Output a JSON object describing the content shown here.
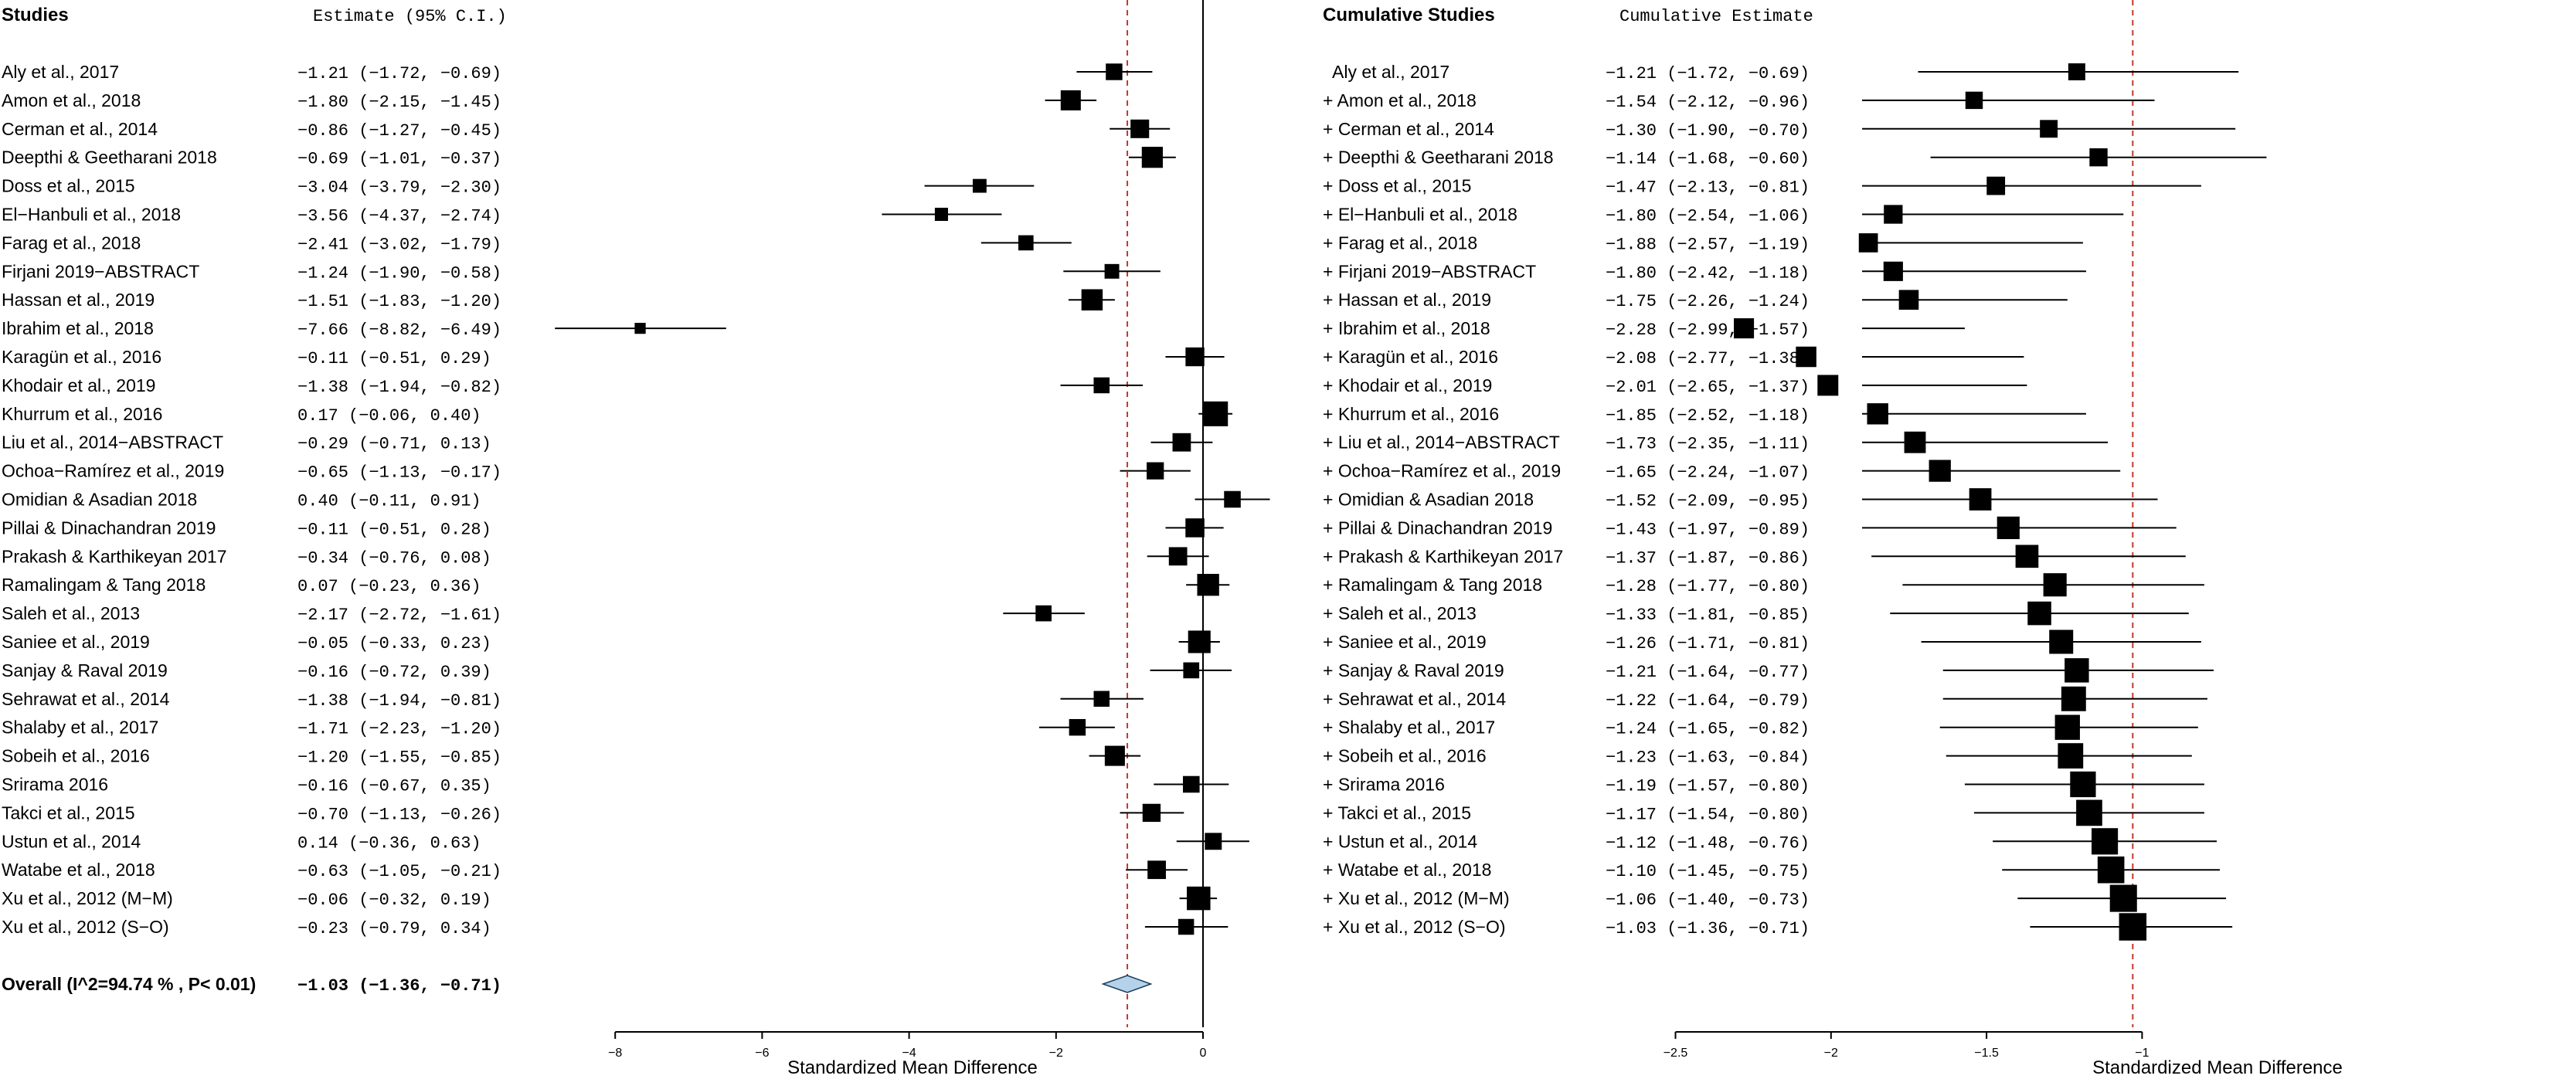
{
  "left_panel": {
    "header_studies": "Studies",
    "header_estimate": "Estimate (95% C.I.)",
    "overall_label": "Overall (I^2=94.74 % , P< 0.01)",
    "overall_estimate": "-1.03 (-1.36, -0.71)"
  },
  "right_panel": {
    "header_studies": "Cumulative Studies",
    "header_estimate": "Cumulative Estimate"
  },
  "chart_data": [
    {
      "type": "forest",
      "xlabel": "Standardized Mean Difference",
      "xlim": [
        -8.5,
        1.5
      ],
      "xticks": [
        -8,
        -6,
        -4,
        -2,
        0
      ],
      "xtick_labels": [
        "−8",
        "−6",
        "−4",
        "−2",
        "0"
      ],
      "reference_line": 0,
      "summary_line": -1.03,
      "colors": {
        "marker": "#000000",
        "summary_line": "#c0392b",
        "diamond": "#b4d3ea"
      },
      "studies": [
        {
          "name": "Aly et al., 2017",
          "est": -1.21,
          "lo": -1.72,
          "hi": -0.69,
          "text": "-1.21 (-1.72, -0.69)"
        },
        {
          "name": "Amon et al., 2018",
          "est": -1.8,
          "lo": -2.15,
          "hi": -1.45,
          "text": "-1.80 (-2.15, -1.45)"
        },
        {
          "name": "Cerman et al., 2014",
          "est": -0.86,
          "lo": -1.27,
          "hi": -0.45,
          "text": "-0.86 (-1.27, -0.45)"
        },
        {
          "name": "Deepthi & Geetharani 2018",
          "est": -0.69,
          "lo": -1.01,
          "hi": -0.37,
          "text": "-0.69 (-1.01, -0.37)"
        },
        {
          "name": "Doss et al., 2015",
          "est": -3.04,
          "lo": -3.79,
          "hi": -2.3,
          "text": "-3.04 (-3.79, -2.30)"
        },
        {
          "name": "El−Hanbuli et al., 2018",
          "est": -3.56,
          "lo": -4.37,
          "hi": -2.74,
          "text": "-3.56 (-4.37, -2.74)"
        },
        {
          "name": "Farag et al., 2018",
          "est": -2.41,
          "lo": -3.02,
          "hi": -1.79,
          "text": "-2.41 (-3.02, -1.79)"
        },
        {
          "name": "Firjani 2019−ABSTRACT",
          "est": -1.24,
          "lo": -1.9,
          "hi": -0.58,
          "text": "-1.24 (-1.90, -0.58)"
        },
        {
          "name": "Hassan et al., 2019",
          "est": -1.51,
          "lo": -1.83,
          "hi": -1.2,
          "text": "-1.51 (-1.83, -1.20)"
        },
        {
          "name": "Ibrahim et al., 2018",
          "est": -7.66,
          "lo": -8.82,
          "hi": -6.49,
          "text": "-7.66 (-8.82, -6.49)"
        },
        {
          "name": "Karagün et al., 2016",
          "est": -0.11,
          "lo": -0.51,
          "hi": 0.29,
          "text": "-0.11 (-0.51,  0.29)"
        },
        {
          "name": "Khodair et al., 2019",
          "est": -1.38,
          "lo": -1.94,
          "hi": -0.82,
          "text": "-1.38 (-1.94, -0.82)"
        },
        {
          "name": "Khurrum et al., 2016",
          "est": 0.17,
          "lo": -0.06,
          "hi": 0.4,
          "text": " 0.17 (-0.06,  0.40)"
        },
        {
          "name": "Liu et al., 2014−ABSTRACT",
          "est": -0.29,
          "lo": -0.71,
          "hi": 0.13,
          "text": "-0.29 (-0.71,  0.13)"
        },
        {
          "name": "Ochoa−Ramírez et al., 2019",
          "est": -0.65,
          "lo": -1.13,
          "hi": -0.17,
          "text": "-0.65 (-1.13, -0.17)"
        },
        {
          "name": "Omidian & Asadian 2018",
          "est": 0.4,
          "lo": -0.11,
          "hi": 0.91,
          "text": " 0.40 (-0.11,  0.91)"
        },
        {
          "name": "Pillai & Dinachandran 2019",
          "est": -0.11,
          "lo": -0.51,
          "hi": 0.28,
          "text": "-0.11 (-0.51,  0.28)"
        },
        {
          "name": "Prakash & Karthikeyan 2017",
          "est": -0.34,
          "lo": -0.76,
          "hi": 0.08,
          "text": "-0.34 (-0.76,  0.08)"
        },
        {
          "name": "Ramalingam & Tang 2018",
          "est": 0.07,
          "lo": -0.23,
          "hi": 0.36,
          "text": " 0.07 (-0.23,  0.36)"
        },
        {
          "name": "Saleh et al., 2013",
          "est": -2.17,
          "lo": -2.72,
          "hi": -1.61,
          "text": "-2.17 (-2.72, -1.61)"
        },
        {
          "name": "Saniee et al., 2019",
          "est": -0.05,
          "lo": -0.33,
          "hi": 0.23,
          "text": "-0.05 (-0.33,  0.23)"
        },
        {
          "name": "Sanjay & Raval 2019",
          "est": -0.16,
          "lo": -0.72,
          "hi": 0.39,
          "text": "-0.16 (-0.72,  0.39)"
        },
        {
          "name": "Sehrawat et al., 2014",
          "est": -1.38,
          "lo": -1.94,
          "hi": -0.81,
          "text": "-1.38 (-1.94, -0.81)"
        },
        {
          "name": "Shalaby et al., 2017",
          "est": -1.71,
          "lo": -2.23,
          "hi": -1.2,
          "text": "-1.71 (-2.23, -1.20)"
        },
        {
          "name": "Sobeih et al., 2016",
          "est": -1.2,
          "lo": -1.55,
          "hi": -0.85,
          "text": "-1.20 (-1.55, -0.85)"
        },
        {
          "name": "Srirama 2016",
          "est": -0.16,
          "lo": -0.67,
          "hi": 0.35,
          "text": "-0.16 (-0.67,  0.35)"
        },
        {
          "name": "Takci et al., 2015",
          "est": -0.7,
          "lo": -1.13,
          "hi": -0.26,
          "text": "-0.70 (-1.13, -0.26)"
        },
        {
          "name": "Ustun et al., 2014",
          "est": 0.14,
          "lo": -0.36,
          "hi": 0.63,
          "text": " 0.14 (-0.36,  0.63)"
        },
        {
          "name": "Watabe et al., 2018",
          "est": -0.63,
          "lo": -1.05,
          "hi": -0.21,
          "text": "-0.63 (-1.05, -0.21)"
        },
        {
          "name": "Xu et al., 2012 (M−M)",
          "est": -0.06,
          "lo": -0.32,
          "hi": 0.19,
          "text": "-0.06 (-0.32,  0.19)"
        },
        {
          "name": "Xu et al., 2012 (S−O)",
          "est": -0.23,
          "lo": -0.79,
          "hi": 0.34,
          "text": "-0.23 (-0.79,  0.34)"
        }
      ],
      "overall": {
        "est": -1.03,
        "lo": -1.36,
        "hi": -0.71
      }
    },
    {
      "type": "cumulative-forest",
      "xlabel": "Standardized Mean Difference",
      "xlim": [
        -2.6,
        -0.8
      ],
      "xticks": [
        -2.5,
        -2,
        -1.5,
        -1
      ],
      "xtick_labels": [
        "−2.5",
        "−2",
        "−1.5",
        "−1"
      ],
      "summary_line": -1.03,
      "colors": {
        "marker": "#000000",
        "summary_line": "#c0392b"
      },
      "studies": [
        {
          "name": "Aly et al., 2017",
          "est": -1.21,
          "lo": -1.72,
          "hi": -0.69,
          "text": "-1.21 (-1.72, -0.69)"
        },
        {
          "name": "+ Amon et al., 2018",
          "est": -1.54,
          "lo": -2.12,
          "hi": -0.96,
          "text": "-1.54 (-2.12, -0.96)"
        },
        {
          "name": "+ Cerman et al., 2014",
          "est": -1.3,
          "lo": -1.9,
          "hi": -0.7,
          "text": "-1.30 (-1.90, -0.70)"
        },
        {
          "name": "+ Deepthi & Geetharani 2018",
          "est": -1.14,
          "lo": -1.68,
          "hi": -0.6,
          "text": "-1.14 (-1.68, -0.60)"
        },
        {
          "name": "+ Doss et al., 2015",
          "est": -1.47,
          "lo": -2.13,
          "hi": -0.81,
          "text": "-1.47 (-2.13, -0.81)"
        },
        {
          "name": "+ El−Hanbuli et al., 2018",
          "est": -1.8,
          "lo": -2.54,
          "hi": -1.06,
          "text": "-1.80 (-2.54, -1.06)"
        },
        {
          "name": "+ Farag et al., 2018",
          "est": -1.88,
          "lo": -2.57,
          "hi": -1.19,
          "text": "-1.88 (-2.57, -1.19)"
        },
        {
          "name": "+ Firjani 2019−ABSTRACT",
          "est": -1.8,
          "lo": -2.42,
          "hi": -1.18,
          "text": "-1.80 (-2.42, -1.18)"
        },
        {
          "name": "+ Hassan et al., 2019",
          "est": -1.75,
          "lo": -2.26,
          "hi": -1.24,
          "text": "-1.75 (-2.26, -1.24)"
        },
        {
          "name": "+ Ibrahim et al., 2018",
          "est": -2.28,
          "lo": -2.99,
          "hi": -1.57,
          "text": "-2.28 (-2.99, -1.57)"
        },
        {
          "name": "+ Karagün et al., 2016",
          "est": -2.08,
          "lo": -2.77,
          "hi": -1.38,
          "text": "-2.08 (-2.77, -1.38)"
        },
        {
          "name": "+ Khodair et al., 2019",
          "est": -2.01,
          "lo": -2.65,
          "hi": -1.37,
          "text": "-2.01 (-2.65, -1.37)"
        },
        {
          "name": "+ Khurrum et al., 2016",
          "est": -1.85,
          "lo": -2.52,
          "hi": -1.18,
          "text": "-1.85 (-2.52, -1.18)"
        },
        {
          "name": "+ Liu et al., 2014−ABSTRACT",
          "est": -1.73,
          "lo": -2.35,
          "hi": -1.11,
          "text": "-1.73 (-2.35, -1.11)"
        },
        {
          "name": "+ Ochoa−Ramírez et al., 2019",
          "est": -1.65,
          "lo": -2.24,
          "hi": -1.07,
          "text": "-1.65 (-2.24, -1.07)"
        },
        {
          "name": "+ Omidian & Asadian 2018",
          "est": -1.52,
          "lo": -2.09,
          "hi": -0.95,
          "text": "-1.52 (-2.09, -0.95)"
        },
        {
          "name": "+ Pillai & Dinachandran 2019",
          "est": -1.43,
          "lo": -1.97,
          "hi": -0.89,
          "text": "-1.43 (-1.97, -0.89)"
        },
        {
          "name": "+ Prakash & Karthikeyan 2017",
          "est": -1.37,
          "lo": -1.87,
          "hi": -0.86,
          "text": "-1.37 (-1.87, -0.86)"
        },
        {
          "name": "+ Ramalingam & Tang 2018",
          "est": -1.28,
          "lo": -1.77,
          "hi": -0.8,
          "text": "-1.28 (-1.77, -0.80)"
        },
        {
          "name": "+ Saleh et al., 2013",
          "est": -1.33,
          "lo": -1.81,
          "hi": -0.85,
          "text": "-1.33 (-1.81, -0.85)"
        },
        {
          "name": "+ Saniee et al., 2019",
          "est": -1.26,
          "lo": -1.71,
          "hi": -0.81,
          "text": "-1.26 (-1.71, -0.81)"
        },
        {
          "name": "+ Sanjay & Raval 2019",
          "est": -1.21,
          "lo": -1.64,
          "hi": -0.77,
          "text": "-1.21 (-1.64, -0.77)"
        },
        {
          "name": "+ Sehrawat et al., 2014",
          "est": -1.22,
          "lo": -1.64,
          "hi": -0.79,
          "text": "-1.22 (-1.64, -0.79)"
        },
        {
          "name": "+ Shalaby et al., 2017",
          "est": -1.24,
          "lo": -1.65,
          "hi": -0.82,
          "text": "-1.24 (-1.65, -0.82)"
        },
        {
          "name": "+ Sobeih et al., 2016",
          "est": -1.23,
          "lo": -1.63,
          "hi": -0.84,
          "text": "-1.23 (-1.63, -0.84)"
        },
        {
          "name": "+ Srirama 2016",
          "est": -1.19,
          "lo": -1.57,
          "hi": -0.8,
          "text": "-1.19 (-1.57, -0.80)"
        },
        {
          "name": "+ Takci et al., 2015",
          "est": -1.17,
          "lo": -1.54,
          "hi": -0.8,
          "text": "-1.17 (-1.54, -0.80)"
        },
        {
          "name": "+ Ustun et al., 2014",
          "est": -1.12,
          "lo": -1.48,
          "hi": -0.76,
          "text": "-1.12 (-1.48, -0.76)"
        },
        {
          "name": "+ Watabe et al., 2018",
          "est": -1.1,
          "lo": -1.45,
          "hi": -0.75,
          "text": "-1.10 (-1.45, -0.75)"
        },
        {
          "name": "+ Xu et al., 2012 (M−M)",
          "est": -1.06,
          "lo": -1.4,
          "hi": -0.73,
          "text": "-1.06 (-1.40, -0.73)"
        },
        {
          "name": "+ Xu et al., 2012 (S−O)",
          "est": -1.03,
          "lo": -1.36,
          "hi": -0.71,
          "text": "-1.03 (-1.36, -0.71)"
        }
      ]
    }
  ]
}
